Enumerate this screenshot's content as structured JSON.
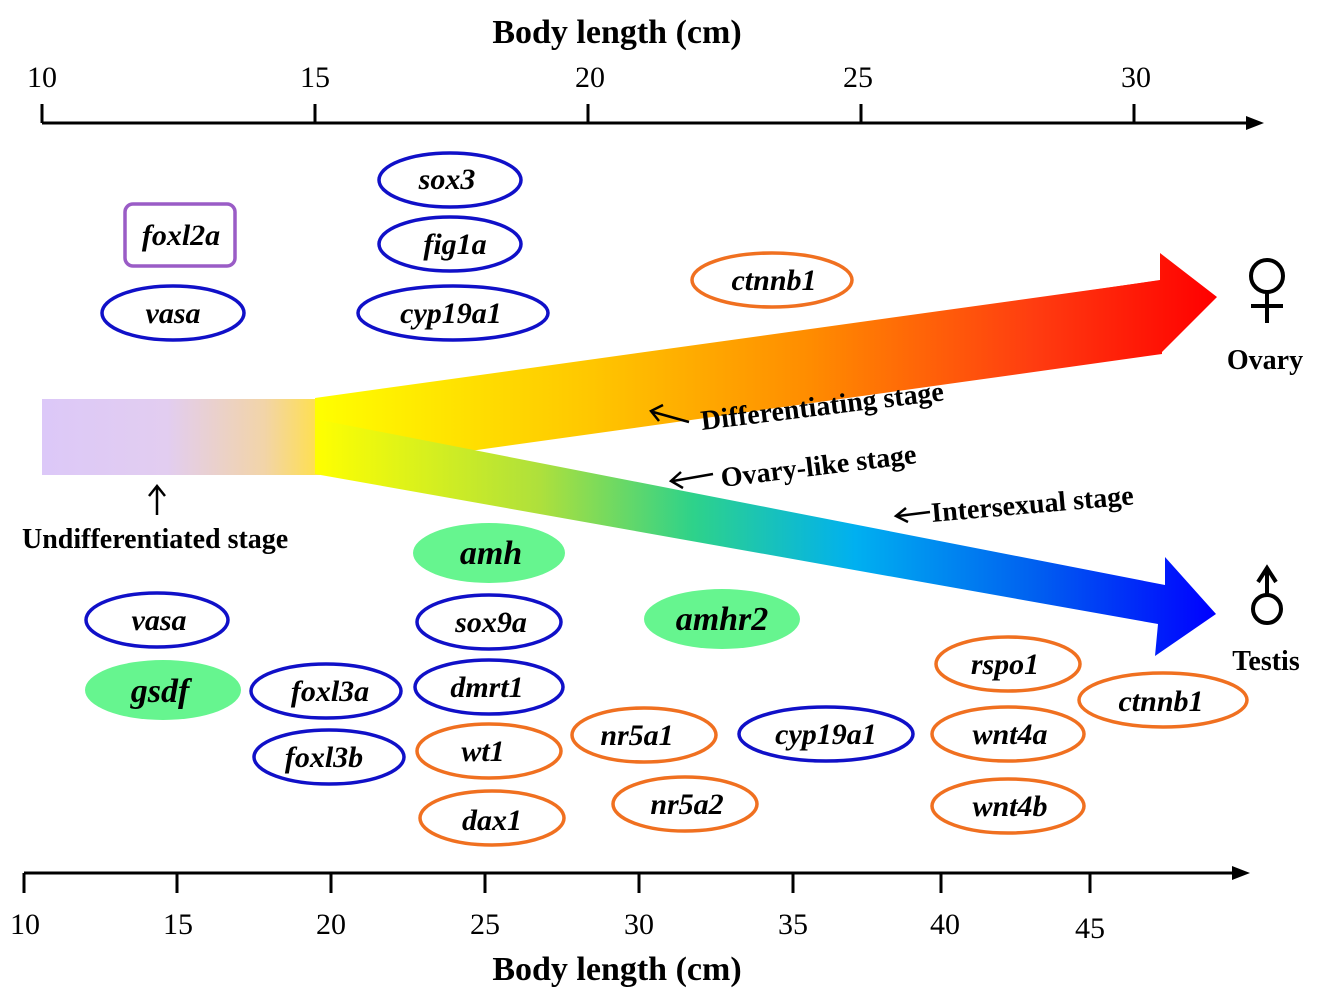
{
  "top_axis": {
    "title": "Body length (cm)",
    "ticks": [
      "10",
      "15",
      "20",
      "25",
      "30"
    ]
  },
  "bottom_axis": {
    "title": "Body length (cm)",
    "ticks": [
      "10",
      "15",
      "20",
      "25",
      "30",
      "35",
      "40",
      "45"
    ]
  },
  "stages": {
    "undifferentiated": "Undifferentiated stage",
    "differentiating": "Differentiating stage",
    "ovary_like": "Ovary-like stage",
    "intersexual": "Intersexual  stage"
  },
  "outcomes": {
    "female_symbol": "♀",
    "female_label": "Ovary",
    "male_symbol": "♂",
    "male_label": "Testis"
  },
  "colors": {
    "blue_outline": "#1010c8",
    "orange_outline": "#f07020",
    "purple_outline": "#9a5cc6",
    "green_fill": "#66f58f",
    "undifferentiated_fill": "#dcc8f8"
  },
  "ovary_genes": {
    "foxl2a": "foxl2a",
    "vasa": "vasa",
    "sox3": "sox3",
    "fig1a": "fig1a",
    "cyp19a1": "cyp19a1",
    "ctnnb1": "ctnnb1"
  },
  "testis_genes": {
    "vasa": "vasa",
    "gsdf": "gsdf",
    "foxl3a": "foxl3a",
    "foxl3b": "foxl3b",
    "amh": "amh",
    "sox9a": "sox9a",
    "dmrt1": "dmrt1",
    "wt1": "wt1",
    "dax1": "dax1",
    "amhr2": "amhr2",
    "nr5a1": "nr5a1",
    "nr5a2": "nr5a2",
    "cyp19a1": "cyp19a1",
    "rspo1": "rspo1",
    "wnt4a": "wnt4a",
    "wnt4b": "wnt4b",
    "ctnnb1": "ctnnb1"
  }
}
